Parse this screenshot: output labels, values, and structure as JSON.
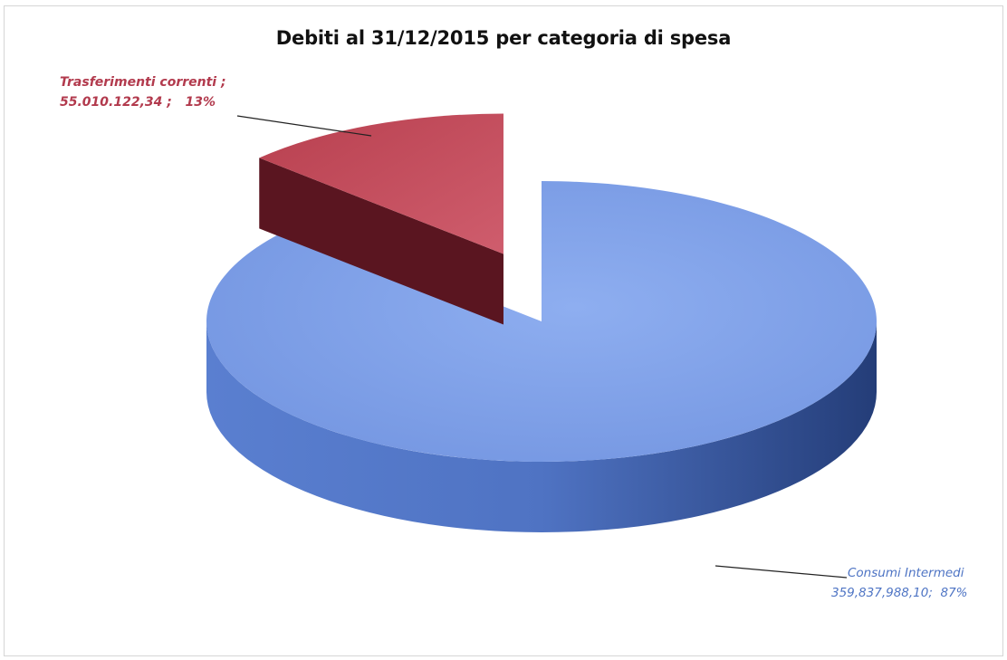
{
  "chart_data": {
    "type": "pie",
    "title": "Debiti al 31/12/2015 per categoria di spesa",
    "three_d": true,
    "exploded": true,
    "slices": [
      {
        "name": "Consumi Intermedi",
        "value_text": "359,837,988,10",
        "value": 359837988.1,
        "percent": 87,
        "percent_text": "87%",
        "color": "#7b9ee6",
        "side_color": "#3f5ea8"
      },
      {
        "name": "Trasferimenti correnti",
        "value_text": "55.010.122,34",
        "value": 55010122.34,
        "percent": 13,
        "percent_text": "13%",
        "color": "#c24b5c",
        "side_color": "#5a1520"
      }
    ]
  }
}
